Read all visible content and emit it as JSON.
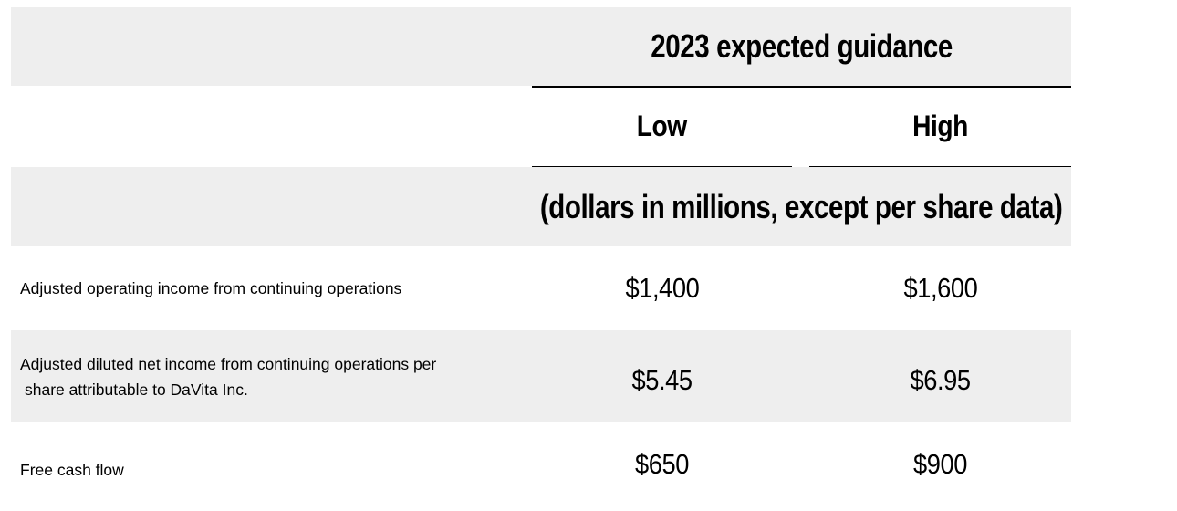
{
  "table": {
    "header": "2023 expected guidance",
    "columns": {
      "low": "Low",
      "high": "High"
    },
    "units_note": "(dollars in millions, except per share data)",
    "rows": [
      {
        "label_lines": [
          "Adjusted operating income from continuing operations"
        ],
        "low": "$1,400",
        "high": "$1,600"
      },
      {
        "label_lines": [
          "Adjusted diluted net income from continuing operations per",
          "share attributable to DaVita Inc."
        ],
        "low": "$5.45",
        "high": "$6.95"
      },
      {
        "label_lines": [
          "Free cash flow"
        ],
        "low": "$650",
        "high": "$900"
      }
    ],
    "colors": {
      "band_background": "#eeeeee",
      "text": "#000000",
      "rule": "#000000"
    }
  }
}
